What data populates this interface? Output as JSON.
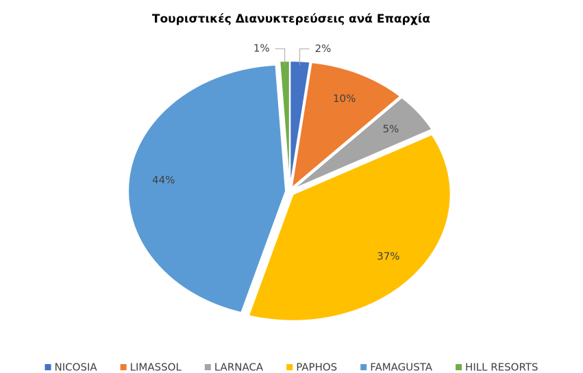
{
  "chart_data": {
    "type": "pie",
    "title": "Τουριστικές Διανυκτερεύσεις ανά Επαρχία",
    "categories": [
      "NICOSIA",
      "LIMASSOL",
      "LARNACA",
      "PAPHOS",
      "FAMAGUSTA",
      "HILL RESORTS"
    ],
    "values": [
      2,
      10,
      5,
      37,
      44,
      1
    ],
    "value_labels": [
      "2%",
      "10%",
      "5%",
      "37%",
      "44%",
      "1%"
    ],
    "colors": [
      "#4472c4",
      "#ed7d31",
      "#a5a5a5",
      "#ffc000",
      "#5b9bd5",
      "#70ad47"
    ],
    "legend": "bottom"
  }
}
